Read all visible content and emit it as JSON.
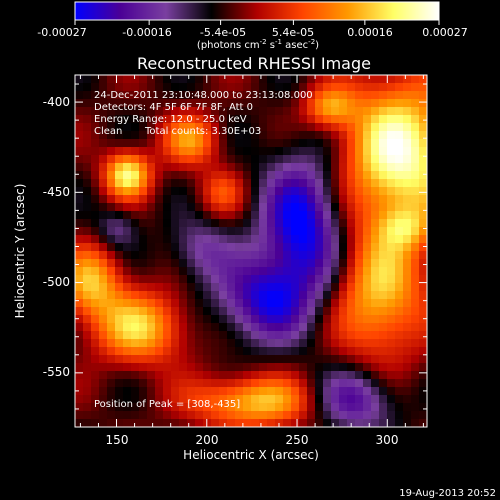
{
  "colorbar": {
    "ticks": [
      "-0.00027",
      "-0.00016",
      "-5.4e-05",
      "5.4e-05",
      "0.00016",
      "0.00027"
    ],
    "tick_values": [
      -0.00027,
      -0.00016,
      -5.4e-05,
      5.4e-05,
      0.00016,
      0.00027
    ],
    "range": [
      -0.00027,
      0.00027
    ],
    "unit_prefix": "(photons cm",
    "unit_exp1": "-2",
    "unit_mid": " s",
    "unit_exp2": "-1",
    "unit_suffix": " asec",
    "unit_exp3": "-2",
    "unit_close": ")",
    "stops": [
      "#0000ff",
      "#4b0096",
      "#7a3fa0",
      "#000000",
      "#b00000",
      "#ff4400",
      "#ff9900",
      "#ffff66",
      "#ffffff"
    ]
  },
  "chart_data": {
    "type": "heatmap",
    "title": "Reconstructed RHESSI Image",
    "xlabel": "Heliocentric X (arcsec)",
    "ylabel": "Heliocentric Y (arcsec)",
    "xlim": [
      127,
      322
    ],
    "ylim": [
      -580,
      -385
    ],
    "x_ticks": [
      150,
      200,
      250,
      300
    ],
    "x_tick_labels": [
      "150",
      "200",
      "250",
      "300"
    ],
    "y_ticks": [
      -400,
      -450,
      -500,
      -550
    ],
    "y_tick_labels": [
      "-400",
      "-450",
      "-500",
      "-550"
    ],
    "sources": [
      {
        "x": 307,
        "y": -428,
        "sx": 22,
        "sy": 28,
        "amp": 1.0
      },
      {
        "x": 268,
        "y": -403,
        "sx": 10,
        "sy": 8,
        "amp": 0.55
      },
      {
        "x": 296,
        "y": -506,
        "sx": 18,
        "sy": 26,
        "amp": 0.7
      },
      {
        "x": 156,
        "y": -440,
        "sx": 9,
        "sy": 9,
        "amp": 0.85
      },
      {
        "x": 136,
        "y": -500,
        "sx": 12,
        "sy": 14,
        "amp": 0.65
      },
      {
        "x": 163,
        "y": -525,
        "sx": 18,
        "sy": 14,
        "amp": 0.7
      },
      {
        "x": 226,
        "y": -566,
        "sx": 24,
        "sy": 10,
        "amp": 0.7
      },
      {
        "x": 191,
        "y": -421,
        "sx": 11,
        "sy": 10,
        "amp": 0.55
      },
      {
        "x": 253,
        "y": -470,
        "sx": 16,
        "sy": 28,
        "amp": -0.8
      },
      {
        "x": 230,
        "y": -510,
        "sx": 18,
        "sy": 16,
        "amp": -0.6
      },
      {
        "x": 196,
        "y": -482,
        "sx": 12,
        "sy": 12,
        "amp": -0.35
      },
      {
        "x": 282,
        "y": -565,
        "sx": 16,
        "sy": 12,
        "amp": -0.55
      },
      {
        "x": 208,
        "y": -450,
        "sx": 9,
        "sy": 9,
        "amp": 0.35
      },
      {
        "x": 150,
        "y": -470,
        "sx": 8,
        "sy": 8,
        "amp": -0.3
      },
      {
        "x": 310,
        "y": -470,
        "sx": 10,
        "sy": 8,
        "amp": 0.35
      }
    ],
    "annotations": {
      "time": "24-Dec-2011 23:10:48.000 to 23:13:08.000",
      "detectors": "Detectors: 4F 5F 6F 7F 8F, Att 0",
      "energy": "Energy Range: 12.0 - 25.0 keV",
      "clean": "Clean",
      "counts": "Total counts: 3.30E+03",
      "peak_label": "Position of Peak = ",
      "peak_value": "[308,-435]"
    }
  },
  "footer": {
    "timestamp": "19-Aug-2013 20:52"
  }
}
